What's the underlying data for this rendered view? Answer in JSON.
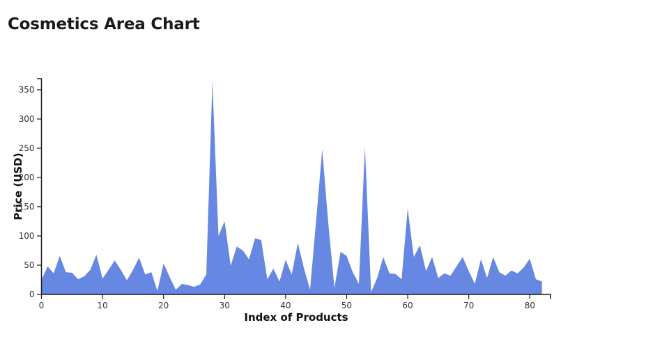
{
  "page": {
    "title": "Cosmetics Area Chart"
  },
  "chart_data": {
    "type": "area",
    "title": "Cosmetics Area Chart",
    "xlabel": "Index of Products",
    "ylabel": "Price (USD)",
    "xlim": [
      0,
      83.4
    ],
    "ylim": [
      0,
      369
    ],
    "x_ticks": [
      0,
      10,
      20,
      30,
      40,
      50,
      60,
      70,
      80
    ],
    "y_ticks": [
      0,
      50,
      100,
      150,
      200,
      250,
      300,
      350
    ],
    "grid": false,
    "legend": false,
    "fill_color": "#6687E2",
    "axis_color": "#1a1a1a",
    "tick_label_color": "#333333",
    "x": [
      0,
      1,
      2,
      3,
      4,
      5,
      6,
      7,
      8,
      9,
      10,
      11,
      12,
      13,
      14,
      15,
      16,
      17,
      18,
      19,
      20,
      21,
      22,
      23,
      24,
      25,
      26,
      27,
      28,
      29,
      30,
      31,
      32,
      33,
      34,
      35,
      36,
      37,
      38,
      39,
      40,
      41,
      42,
      43,
      44,
      45,
      46,
      47,
      48,
      49,
      50,
      51,
      52,
      53,
      54,
      55,
      56,
      57,
      58,
      59,
      60,
      61,
      62,
      63,
      64,
      65,
      66,
      67,
      68,
      69,
      70,
      71,
      72,
      73,
      74,
      75,
      76,
      77,
      78,
      79,
      80,
      81,
      82
    ],
    "values": [
      25,
      48,
      36,
      66,
      38,
      37,
      26,
      31,
      42,
      68,
      27,
      42,
      58,
      42,
      24,
      42,
      63,
      34,
      38,
      6,
      53,
      30,
      8,
      18,
      16,
      13,
      17,
      34,
      365,
      100,
      125,
      49,
      82,
      75,
      60,
      96,
      93,
      26,
      44,
      22,
      59,
      34,
      88,
      45,
      8,
      127,
      248,
      120,
      11,
      73,
      66,
      38,
      18,
      252,
      4,
      28,
      64,
      36,
      35,
      26,
      147,
      64,
      84,
      40,
      64,
      28,
      36,
      32,
      48,
      64,
      40,
      18,
      60,
      28,
      64,
      38,
      32,
      41,
      36,
      46,
      61,
      26,
      22
    ]
  }
}
